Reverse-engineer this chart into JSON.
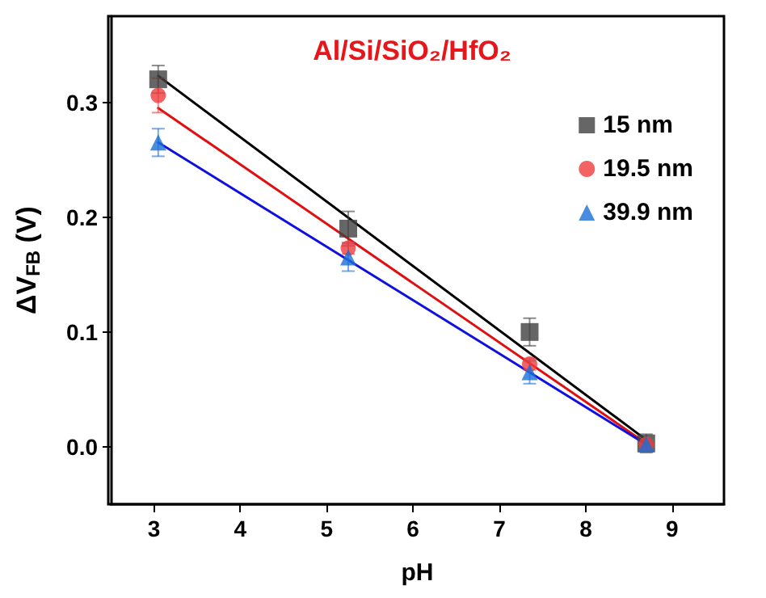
{
  "chart_data": {
    "type": "scatter",
    "title": "Al/Si/SiO₂/HfO₂",
    "xlabel": "pH",
    "ylabel": "ΔV$_{FB}$ (V)",
    "xlim": [
      2.5,
      9.6
    ],
    "xticks": [
      3,
      4,
      5,
      6,
      7,
      8,
      9
    ],
    "ylim": [
      -0.05,
      0.375
    ],
    "yticks": [
      {
        "value": 0,
        "label": "0.0"
      },
      0.1,
      0.2,
      0.3
    ],
    "grid": false,
    "legend": "top right",
    "series": [
      {
        "name": "15 nm",
        "color": "#404040",
        "marker": "square",
        "x": [
          3.05,
          5.25,
          7.35,
          8.7
        ],
        "values": [
          0.32,
          0.19,
          0.1,
          0.003
        ],
        "errors": [
          0.012,
          0.015,
          0.012,
          0.008
        ]
      },
      {
        "name": "19.5 nm",
        "color": "#f03c3c",
        "marker": "circle",
        "x": [
          3.05,
          5.25,
          7.35,
          8.7
        ],
        "values": [
          0.306,
          0.173,
          0.072,
          0.002
        ],
        "errors": [
          0.015,
          0.005,
          0.005,
          null
        ]
      },
      {
        "name": "39.9 nm",
        "color": "#1a6fd8",
        "marker": "triangle",
        "x": [
          3.05,
          5.25,
          7.35,
          8.7
        ],
        "values": [
          0.265,
          0.165,
          0.065,
          0.002
        ],
        "errors": [
          0.012,
          0.012,
          0.01,
          null
        ]
      },
      {
        "type": "line",
        "color": "#000000",
        "marker": "none",
        "line_style": "solid",
        "x": [
          3.05,
          8.7
        ],
        "values": [
          0.323,
          0.006
        ]
      },
      {
        "type": "line",
        "color": "#e01010",
        "marker": "none",
        "line_style": "solid",
        "x": [
          3.05,
          8.7
        ],
        "values": [
          0.295,
          0.003
        ]
      },
      {
        "type": "line",
        "color": "#1010e0",
        "marker": "none",
        "line_style": "solid",
        "x": [
          3.05,
          8.7
        ],
        "values": [
          0.265,
          0.002
        ]
      }
    ]
  }
}
